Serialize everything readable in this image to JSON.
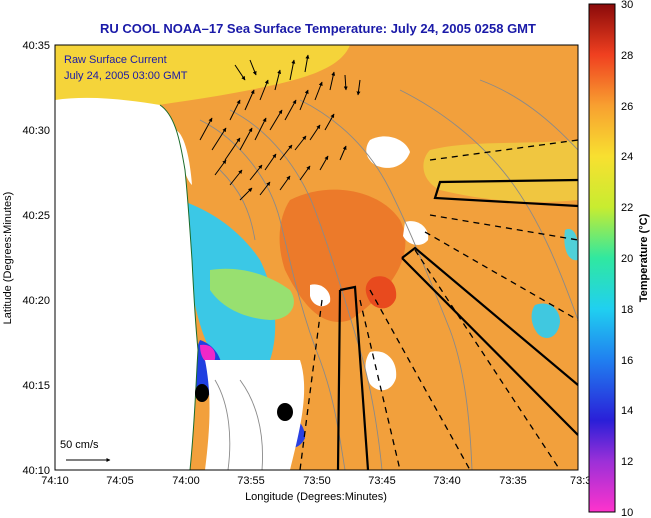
{
  "title": "RU COOL  NOAA–17  Sea Surface Temperature:  July 24, 2005 0258 GMT",
  "annotation": {
    "line1": "Raw Surface Current",
    "line2": "July 24, 2005 03:00 GMT"
  },
  "axes": {
    "xlabel": "Longitude (Degrees:Minutes)",
    "ylabel": "Latitude (Degrees:Minutes)",
    "x_ticks": [
      "74:10",
      "74:05",
      "74:00",
      "73:55",
      "73:50",
      "73:45",
      "73:40",
      "73:35",
      "73:3"
    ],
    "y_ticks": [
      "40:35",
      "40:30",
      "40:25",
      "40:20",
      "40:15",
      "40:10"
    ]
  },
  "colorbar": {
    "label": "Temperature (°C)",
    "ticks": [
      "30",
      "28",
      "26",
      "24",
      "22",
      "20",
      "18",
      "16",
      "14",
      "12",
      "10"
    ],
    "min": 10,
    "max": 30
  },
  "scale_arrow": {
    "label": "50 cm/s"
  },
  "colors": {
    "title": "#1a1aa8",
    "land": "#ffffff",
    "sst_warm": "#f29a3a",
    "sst_hot": "#e64a1f",
    "sst_mid": "#f7d23a",
    "sst_cool": "#2fd0e8",
    "sst_cold": "#1a2bd8",
    "sst_coldest": "#f020c0",
    "frame": "#000000"
  }
}
